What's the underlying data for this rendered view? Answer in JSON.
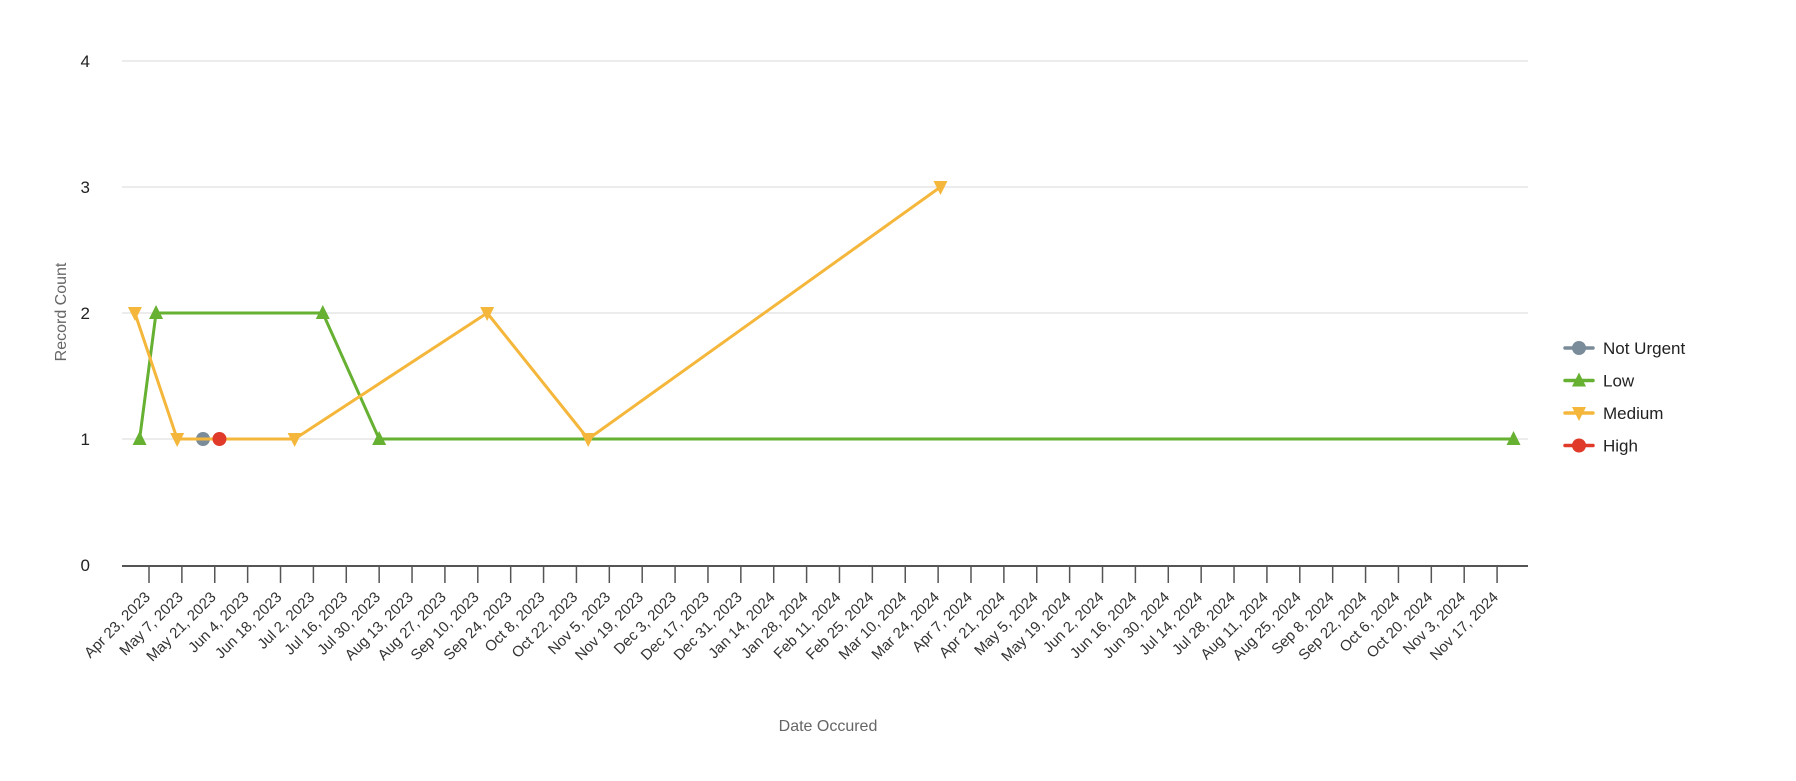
{
  "chart_data": {
    "type": "line",
    "title": "",
    "xlabel": "Date Occured",
    "ylabel": "Record Count",
    "ylim": [
      0,
      4
    ],
    "yticks": [
      0,
      1,
      2,
      3,
      4
    ],
    "xlim": [
      "2023-04-11",
      "2024-11-28"
    ],
    "xticks": [
      "2023-04-23",
      "2023-05-07",
      "2023-05-21",
      "2023-06-04",
      "2023-06-18",
      "2023-07-02",
      "2023-07-16",
      "2023-07-30",
      "2023-08-13",
      "2023-08-27",
      "2023-09-10",
      "2023-09-24",
      "2023-10-08",
      "2023-10-22",
      "2023-11-05",
      "2023-11-19",
      "2023-12-03",
      "2023-12-17",
      "2023-12-31",
      "2024-01-14",
      "2024-01-28",
      "2024-02-11",
      "2024-02-25",
      "2024-03-10",
      "2024-03-24",
      "2024-04-07",
      "2024-04-21",
      "2024-05-05",
      "2024-05-19",
      "2024-06-02",
      "2024-06-16",
      "2024-06-30",
      "2024-07-14",
      "2024-07-28",
      "2024-08-11",
      "2024-08-25",
      "2024-09-08",
      "2024-09-22",
      "2024-10-06",
      "2024-10-20",
      "2024-11-03",
      "2024-11-17"
    ],
    "xtick_labels": [
      "Apr 23, 2023",
      "May 7, 2023",
      "May 21, 2023",
      "Jun 4, 2023",
      "Jun 18, 2023",
      "Jul 2, 2023",
      "Jul 16, 2023",
      "Jul 30, 2023",
      "Aug 13, 2023",
      "Aug 27, 2023",
      "Sep 10, 2023",
      "Sep 24, 2023",
      "Oct 8, 2023",
      "Oct 22, 2023",
      "Nov 5, 2023",
      "Nov 19, 2023",
      "Dec 3, 2023",
      "Dec 17, 2023",
      "Dec 31, 2023",
      "Jan 14, 2024",
      "Jan 28, 2024",
      "Feb 11, 2024",
      "Feb 25, 2024",
      "Mar 10, 2024",
      "Mar 24, 2024",
      "Apr 7, 2024",
      "Apr 21, 2024",
      "May 5, 2024",
      "May 19, 2024",
      "Jun 2, 2024",
      "Jun 16, 2024",
      "Jun 30, 2024",
      "Jul 14, 2024",
      "Jul 28, 2024",
      "Aug 11, 2024",
      "Aug 25, 2024",
      "Sep 8, 2024",
      "Sep 22, 2024",
      "Oct 6, 2024",
      "Oct 20, 2024",
      "Nov 3, 2024",
      "Nov 17, 2024"
    ],
    "grid": "horizontal",
    "legend": "right",
    "series": [
      {
        "name": "Not Urgent",
        "color": "#7a8c99",
        "marker": "circle",
        "points": [
          {
            "x": "2023-05-16",
            "y": 1
          }
        ]
      },
      {
        "name": "Low",
        "color": "#66b032",
        "marker": "triangle-up",
        "points": [
          {
            "x": "2023-04-19",
            "y": 1
          },
          {
            "x": "2023-04-26",
            "y": 2
          },
          {
            "x": "2023-07-06",
            "y": 2
          },
          {
            "x": "2023-07-30",
            "y": 1
          },
          {
            "x": "2024-11-24",
            "y": 1
          }
        ]
      },
      {
        "name": "Medium",
        "color": "#f5b73b",
        "marker": "triangle-down",
        "points": [
          {
            "x": "2023-04-17",
            "y": 2
          },
          {
            "x": "2023-05-05",
            "y": 1
          },
          {
            "x": "2023-06-24",
            "y": 1
          },
          {
            "x": "2023-09-14",
            "y": 2
          },
          {
            "x": "2023-10-27",
            "y": 1
          },
          {
            "x": "2024-03-25",
            "y": 3
          }
        ]
      },
      {
        "name": "High",
        "color": "#e03a2a",
        "marker": "circle",
        "points": [
          {
            "x": "2023-05-23",
            "y": 1
          }
        ]
      }
    ]
  }
}
